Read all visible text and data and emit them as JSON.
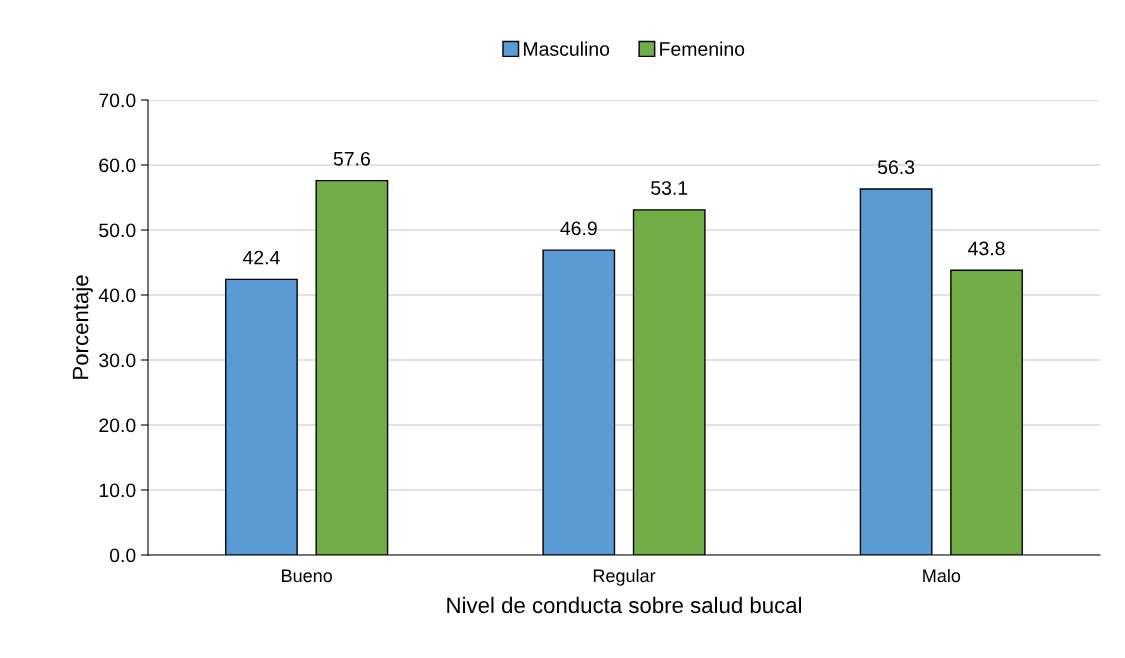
{
  "chart_data": {
    "type": "bar",
    "xlabel": "Nivel de conducta sobre salud bucal",
    "ylabel": "Porcentaje",
    "categories": [
      "Bueno",
      "Regular",
      "Malo"
    ],
    "series": [
      {
        "name": "Masculino",
        "color": "#5b9bd5",
        "values": [
          42.4,
          46.9,
          56.3
        ]
      },
      {
        "name": "Femenino",
        "color": "#70ad47",
        "values": [
          57.6,
          53.1,
          43.8
        ]
      }
    ],
    "ylim": [
      0,
      70
    ],
    "yticks": [
      {
        "value": 0,
        "label": "0.0"
      },
      {
        "value": 10,
        "label": "10.0"
      },
      {
        "value": 20,
        "label": "20.0"
      },
      {
        "value": 30,
        "label": "30.0"
      },
      {
        "value": 40,
        "label": "40.0"
      },
      {
        "value": 50,
        "label": "50.0"
      },
      {
        "value": 60,
        "label": "60.0"
      },
      {
        "value": 70,
        "label": "70.0"
      }
    ],
    "grid": "y",
    "legend": "top",
    "data_labels": true
  }
}
